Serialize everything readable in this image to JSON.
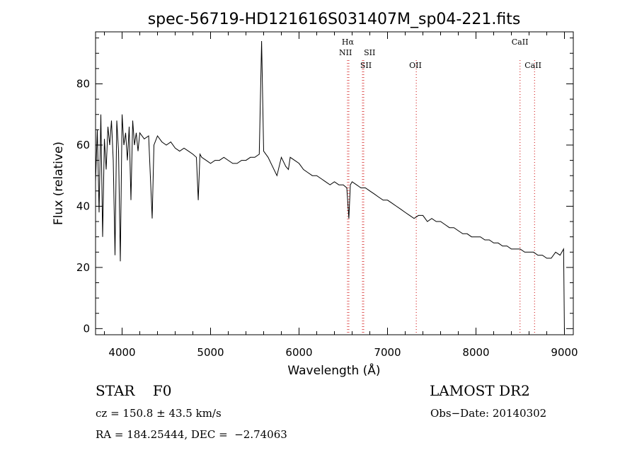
{
  "chart_data": {
    "type": "line",
    "title": "spec-56719-HD121616S031407M_sp04-221.fits",
    "xlabel": "Wavelength (Å)",
    "ylabel": "Flux (relative)",
    "xlim": [
      3700,
      9100
    ],
    "ylim": [
      -2,
      97
    ],
    "xticks": [
      4000,
      5000,
      6000,
      7000,
      8000,
      9000
    ],
    "yticks": [
      0,
      20,
      40,
      60,
      80
    ],
    "grid": false,
    "series": [
      {
        "x": [
          3700,
          3720,
          3740,
          3760,
          3780,
          3800,
          3820,
          3840,
          3860,
          3880,
          3900,
          3920,
          3940,
          3960,
          3980,
          4000,
          4020,
          4040,
          4060,
          4080,
          4100,
          4120,
          4140,
          4160,
          4180,
          4200,
          4250,
          4300,
          4340,
          4360,
          4400,
          4450,
          4500,
          4550,
          4600,
          4650,
          4700,
          4750,
          4800,
          4840,
          4861,
          4880,
          4900,
          4950,
          5000,
          5050,
          5100,
          5150,
          5200,
          5250,
          5300,
          5350,
          5400,
          5450,
          5500,
          5550,
          5577,
          5600,
          5650,
          5700,
          5750,
          5800,
          5850,
          5880,
          5900,
          5950,
          6000,
          6050,
          6100,
          6150,
          6200,
          6250,
          6300,
          6350,
          6400,
          6450,
          6500,
          6540,
          6563,
          6580,
          6600,
          6650,
          6700,
          6750,
          6800,
          6850,
          6900,
          6950,
          7000,
          7050,
          7100,
          7150,
          7200,
          7250,
          7300,
          7350,
          7400,
          7450,
          7500,
          7550,
          7600,
          7650,
          7700,
          7750,
          7800,
          7850,
          7900,
          7950,
          8000,
          8050,
          8100,
          8150,
          8200,
          8250,
          8300,
          8350,
          8400,
          8450,
          8500,
          8550,
          8600,
          8650,
          8700,
          8750,
          8800,
          8850,
          8900,
          8950,
          8990,
          9000
        ],
        "values": [
          48,
          65,
          38,
          70,
          30,
          62,
          52,
          66,
          60,
          68,
          55,
          24,
          68,
          58,
          22,
          70,
          60,
          64,
          55,
          66,
          42,
          68,
          60,
          64,
          58,
          64,
          62,
          63,
          36,
          60,
          63,
          61,
          60,
          61,
          59,
          58,
          59,
          58,
          57,
          56,
          42,
          57,
          56,
          55,
          54,
          55,
          55,
          56,
          55,
          54,
          54,
          55,
          55,
          56,
          56,
          57,
          94,
          58,
          56,
          53,
          50,
          56,
          53,
          52,
          56,
          55,
          54,
          52,
          51,
          50,
          50,
          49,
          48,
          47,
          48,
          47,
          47,
          46,
          36,
          47,
          48,
          47,
          46,
          46,
          45,
          44,
          43,
          42,
          42,
          41,
          40,
          39,
          38,
          37,
          36,
          37,
          37,
          35,
          36,
          35,
          35,
          34,
          33,
          33,
          32,
          31,
          31,
          30,
          30,
          30,
          29,
          29,
          28,
          28,
          27,
          27,
          26,
          26,
          26,
          25,
          25,
          25,
          24,
          24,
          23,
          23,
          25,
          24,
          26,
          -2
        ]
      }
    ],
    "lines": [
      {
        "label": "Hα",
        "x": 6563
      },
      {
        "label": "NII",
        "x": 6548
      },
      {
        "label": "SII",
        "x": 6717
      },
      {
        "label": "SII",
        "x": 6731
      },
      {
        "label": "OII",
        "x": 7325
      },
      {
        "label": "CaII",
        "x": 8498
      },
      {
        "label": "CaII",
        "x": 8662
      }
    ],
    "line_color": "#cc0000"
  },
  "info": {
    "object_class": "STAR    F0",
    "survey": "LAMOST DR2",
    "cz": "cz = 150.8 ± 43.5 km/s",
    "obs_date": "Obs−Date: 20140302",
    "radec": "RA = 184.25444, DEC =  −2.74063"
  }
}
